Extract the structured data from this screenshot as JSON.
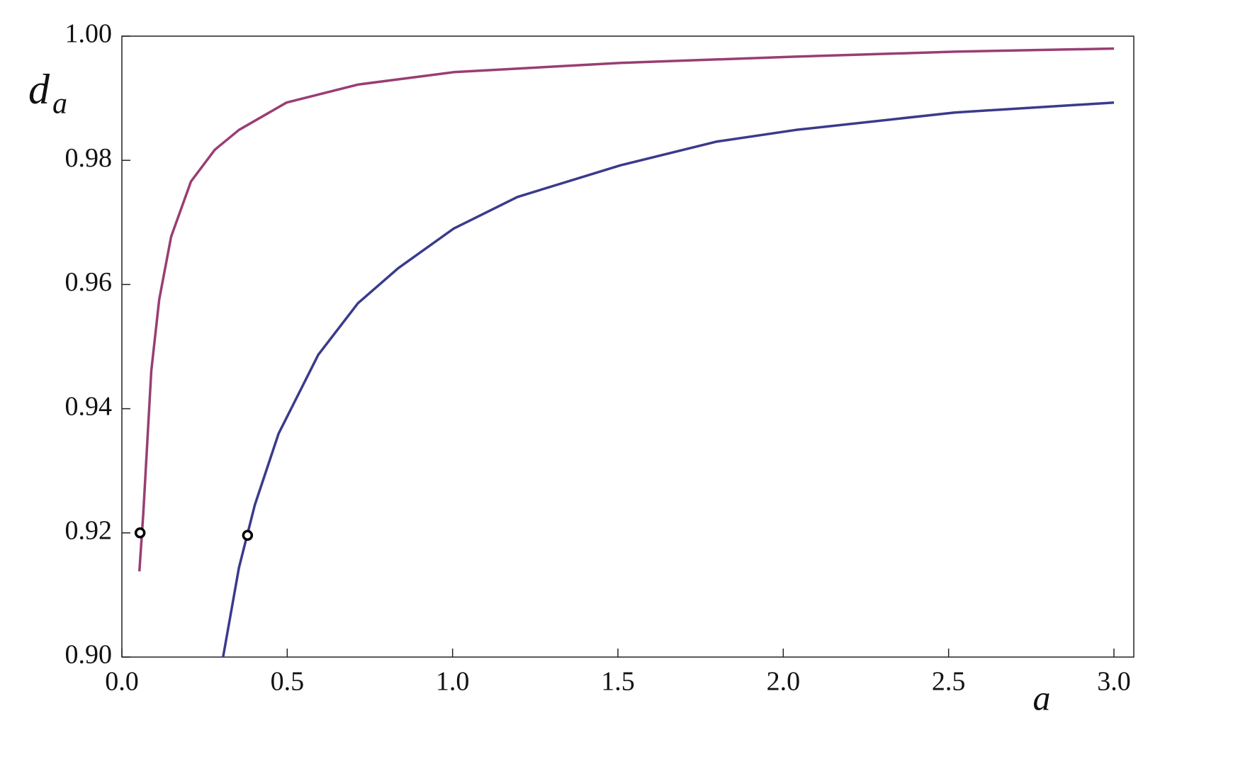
{
  "chart_data": {
    "type": "line",
    "y_label": "d",
    "y_label_subscript": "a",
    "x_label": "a",
    "xlim": [
      0,
      3.06
    ],
    "ylim": [
      0.9,
      1.0
    ],
    "xticks": [
      {
        "value": 0,
        "label": "0.0"
      },
      0.5,
      {
        "value": 1,
        "label": "1.0"
      },
      1.5,
      {
        "value": 2,
        "label": "2.0"
      },
      2.5,
      {
        "value": 3,
        "label": "3.0"
      }
    ],
    "yticks": [
      {
        "value": 0.9,
        "label": "0.90"
      },
      0.92,
      0.94,
      0.96,
      0.98,
      {
        "value": 1,
        "label": "1.00"
      }
    ],
    "series": [
      {
        "color": "#9a3d73",
        "x": [
          0.053,
          0.065,
          0.089,
          0.113,
          0.149,
          0.209,
          0.281,
          0.354,
          0.498,
          0.714,
          1.003,
          1.508,
          2.038,
          2.519,
          3.0
        ],
        "values": [
          0.9138,
          0.9233,
          0.9461,
          0.9576,
          0.9677,
          0.9766,
          0.9817,
          0.9849,
          0.9893,
          0.9922,
          0.9942,
          0.9957,
          0.9967,
          0.9975,
          0.998
        ]
      },
      {
        "color": "#3a3a8c",
        "x": [
          0.306,
          0.354,
          0.402,
          0.474,
          0.594,
          0.714,
          0.835,
          1.003,
          1.196,
          1.508,
          1.797,
          2.038,
          2.519,
          3.0
        ],
        "values": [
          0.9,
          0.9144,
          0.9245,
          0.936,
          0.9487,
          0.957,
          0.9626,
          0.969,
          0.9741,
          0.9792,
          0.983,
          0.9849,
          0.9877,
          0.9893
        ]
      }
    ],
    "markers": {
      "color": "#000000",
      "x": [
        0.055,
        0.38
      ],
      "y": [
        0.92,
        0.9196
      ]
    }
  }
}
